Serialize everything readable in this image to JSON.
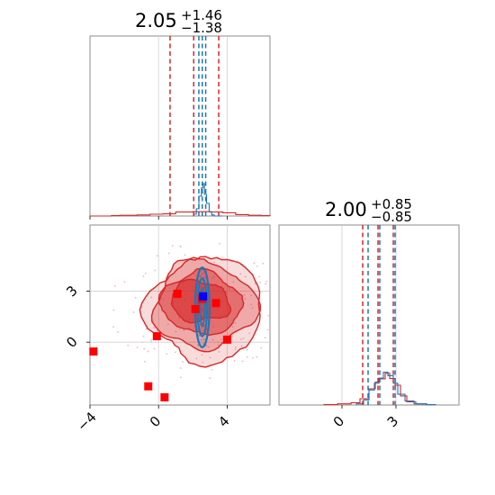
{
  "chart_data": [
    {
      "panel": "x1 marginal",
      "type": "histogram",
      "title": {
        "value": "2.05",
        "upper": "+1.46",
        "lower": "−1.38"
      },
      "xlim": [
        -4,
        6.5
      ],
      "series": [
        {
          "name": "",
          "color": "#d62728",
          "bins": [
            [
              -4,
              0
            ],
            [
              -3.25,
              0
            ],
            [
              -2.75,
              0.01
            ],
            [
              -2.25,
              0.02
            ],
            [
              -1.25,
              0.03
            ],
            [
              -0.5,
              0.05
            ],
            [
              0.25,
              0.06
            ],
            [
              1.0,
              0.11
            ],
            [
              2.0,
              0.12
            ],
            [
              3.0,
              0.11
            ],
            [
              3.75,
              0.09
            ],
            [
              4.5,
              0.04
            ],
            [
              5.25,
              0.02
            ],
            [
              6.0,
              0.01
            ]
          ],
          "quantiles": [
            0.67,
            2.05,
            3.51
          ]
        },
        {
          "name": "",
          "color": "#1f77b4",
          "bins": [
            [
              2.0,
              0
            ],
            [
              2.05,
              0.05
            ],
            [
              2.2,
              0.2
            ],
            [
              2.35,
              0.55
            ],
            [
              2.5,
              0.78
            ],
            [
              2.6,
              0.9
            ],
            [
              2.68,
              0.6
            ],
            [
              2.8,
              0.35
            ],
            [
              2.95,
              0.12
            ],
            [
              3.1,
              0.03
            ],
            [
              3.25,
              0
            ]
          ],
          "quantiles": [
            2.35,
            2.55,
            2.75
          ]
        }
      ]
    },
    {
      "panel": "x2 marginal",
      "type": "histogram",
      "title": {
        "value": "2.00",
        "upper": "+0.85",
        "lower": "−0.85"
      },
      "xlim": [
        -3.5,
        6.5
      ],
      "xticks": [
        "0",
        "3"
      ],
      "series": [
        {
          "name": "",
          "color": "#d62728",
          "bins": [
            [
              -1,
              0.01
            ],
            [
              -0.25,
              0.03
            ],
            [
              0.5,
              0.06
            ],
            [
              1.0,
              0.16
            ],
            [
              1.5,
              0.41
            ],
            [
              1.85,
              0.58
            ],
            [
              2.1,
              0.66
            ],
            [
              2.4,
              0.8
            ],
            [
              2.65,
              0.67
            ],
            [
              2.95,
              0.5
            ],
            [
              3.25,
              0.23
            ],
            [
              3.6,
              0.08
            ],
            [
              4.1,
              0.03
            ],
            [
              4.7,
              0.01
            ]
          ],
          "quantiles": [
            1.15,
            2.0,
            2.85
          ]
        },
        {
          "name": "",
          "color": "#1f77b4",
          "bins": [
            [
              0.8,
              0.03
            ],
            [
              1.2,
              0.13
            ],
            [
              1.5,
              0.38
            ],
            [
              1.8,
              0.55
            ],
            [
              2.05,
              0.68
            ],
            [
              2.3,
              0.83
            ],
            [
              2.55,
              0.74
            ],
            [
              2.85,
              0.55
            ],
            [
              3.1,
              0.27
            ],
            [
              3.5,
              0.1
            ],
            [
              4.0,
              0.03
            ],
            [
              4.7,
              0.01
            ]
          ],
          "quantiles": [
            1.45,
            2.1,
            2.95
          ]
        }
      ]
    },
    {
      "panel": "x1 vs x2 joint",
      "type": "scatter",
      "xlim": [
        -4,
        6.5
      ],
      "ylim": [
        -3.7,
        6.9
      ],
      "xticks": [
        "−4",
        "0",
        "4"
      ],
      "yticks": [
        "0",
        "3"
      ],
      "markers": {
        "color": "#ff0000",
        "points": [
          [
            -3.8,
            -0.55
          ],
          [
            -0.6,
            -2.6
          ],
          [
            0.35,
            -3.25
          ],
          [
            -0.1,
            0.35
          ],
          [
            1.1,
            2.85
          ],
          [
            2.15,
            1.95
          ],
          [
            2.55,
            2.55
          ],
          [
            3.35,
            2.3
          ],
          [
            4.0,
            0.15
          ]
        ]
      },
      "highlight": {
        "color": "#0000ff",
        "point": [
          2.6,
          2.7
        ]
      },
      "series": [
        {
          "name": "",
          "color": "#d62728",
          "center": [
            2.3,
            2.1
          ]
        },
        {
          "name": "",
          "color": "#1f77b4",
          "center": [
            2.55,
            2.05
          ]
        }
      ]
    }
  ]
}
